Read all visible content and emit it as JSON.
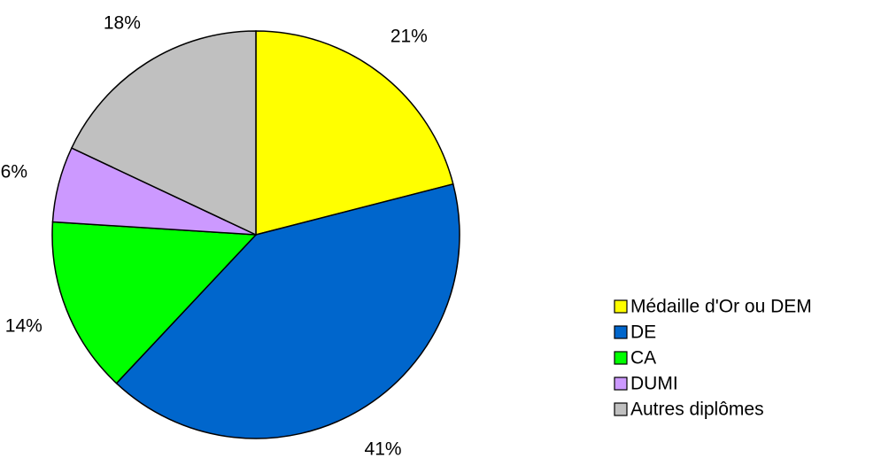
{
  "chart_data": {
    "type": "pie",
    "categories": [
      "Médaille d'Or ou DEM",
      "DE",
      "CA",
      "DUMI",
      "Autres diplômes"
    ],
    "values": [
      21,
      41,
      14,
      6,
      18
    ],
    "value_labels": [
      "21%",
      "41%",
      "14%",
      "6%",
      "18%"
    ],
    "colors": [
      "#ffff00",
      "#0066cc",
      "#00ff00",
      "#cc99ff",
      "#c0c0c0"
    ],
    "legend": "right"
  }
}
